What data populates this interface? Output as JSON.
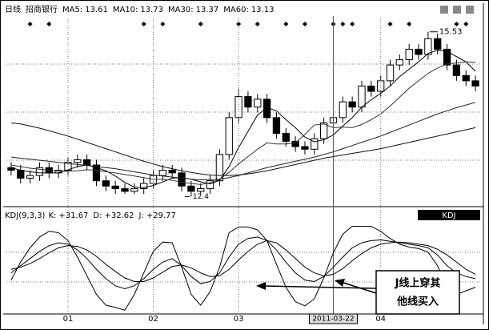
{
  "chart_data": [
    {
      "type": "candlestick",
      "period": "日线",
      "name": "招商银行",
      "ylim": [
        12.3,
        15.8
      ],
      "grid": true,
      "up_color": "#ffffff",
      "down_color": "#000000",
      "open": [
        12.95,
        12.9,
        12.75,
        12.8,
        12.95,
        12.85,
        12.9,
        13.05,
        13.1,
        13.0,
        12.7,
        12.6,
        12.55,
        12.5,
        12.55,
        12.65,
        12.8,
        12.9,
        12.85,
        12.6,
        12.5,
        12.55,
        12.7,
        13.2,
        13.9,
        14.3,
        14.1,
        14.25,
        13.9,
        13.6,
        13.45,
        13.35,
        13.3,
        13.5,
        13.8,
        13.9,
        14.2,
        14.1,
        14.5,
        14.4,
        14.6,
        14.9,
        15.0,
        15.2,
        15.1,
        15.4,
        15.2,
        14.9,
        14.7,
        14.6
      ],
      "high": [
        13.05,
        13.0,
        12.9,
        13.05,
        13.05,
        13.0,
        13.15,
        13.2,
        13.2,
        13.1,
        12.8,
        12.7,
        12.65,
        12.65,
        12.75,
        12.9,
        13.0,
        13.0,
        12.95,
        12.7,
        12.65,
        12.8,
        13.3,
        14.0,
        14.45,
        14.4,
        14.35,
        14.35,
        14.0,
        13.7,
        13.55,
        13.45,
        13.6,
        13.9,
        14.0,
        14.3,
        14.3,
        14.6,
        14.6,
        14.7,
        15.0,
        15.1,
        15.3,
        15.3,
        15.53,
        15.5,
        15.3,
        15.0,
        14.8,
        14.7
      ],
      "low": [
        12.8,
        12.65,
        12.65,
        12.7,
        12.75,
        12.75,
        12.8,
        12.95,
        12.9,
        12.6,
        12.5,
        12.45,
        12.45,
        12.45,
        12.45,
        12.55,
        12.7,
        12.75,
        12.5,
        12.4,
        12.45,
        12.45,
        12.6,
        13.1,
        13.8,
        14.0,
        14.0,
        13.8,
        13.5,
        13.35,
        13.25,
        13.2,
        13.2,
        13.4,
        13.7,
        13.8,
        14.0,
        14.0,
        14.3,
        14.3,
        14.5,
        14.8,
        14.9,
        15.0,
        15.0,
        15.1,
        14.8,
        14.6,
        14.5,
        14.4
      ],
      "close": [
        12.9,
        12.75,
        12.8,
        12.95,
        12.85,
        12.9,
        13.05,
        13.1,
        13.0,
        12.7,
        12.6,
        12.55,
        12.5,
        12.55,
        12.65,
        12.8,
        12.9,
        12.85,
        12.6,
        12.5,
        12.55,
        12.7,
        13.2,
        13.9,
        14.3,
        14.1,
        14.25,
        13.9,
        13.6,
        13.45,
        13.35,
        13.3,
        13.5,
        13.8,
        13.9,
        14.2,
        14.1,
        14.5,
        14.4,
        14.6,
        14.9,
        15.0,
        15.2,
        15.1,
        15.4,
        15.2,
        14.9,
        14.7,
        14.6,
        14.5
      ],
      "series": [
        {
          "name": "MA5:",
          "legend_value": 13.61,
          "color": "#000000",
          "values": [
            12.95,
            12.9,
            12.87,
            12.85,
            12.85,
            12.85,
            12.91,
            12.97,
            13.0,
            12.95,
            12.89,
            12.79,
            12.67,
            12.58,
            12.57,
            12.61,
            12.68,
            12.75,
            12.76,
            12.73,
            12.68,
            12.64,
            12.71,
            12.97,
            13.33,
            13.64,
            13.95,
            14.09,
            14.03,
            13.86,
            13.71,
            13.53,
            13.44,
            13.48,
            13.57,
            13.74,
            13.9,
            14.1,
            14.24,
            14.36,
            14.5,
            14.68,
            14.82,
            14.96,
            15.12,
            15.18,
            15.16,
            15.06,
            14.96,
            14.78
          ]
        },
        {
          "name": "MA10:",
          "legend_value": 13.73,
          "color": "#333333",
          "values": [
            13.0,
            12.97,
            12.94,
            12.92,
            12.9,
            12.88,
            12.88,
            12.89,
            12.91,
            12.9,
            12.87,
            12.85,
            12.82,
            12.79,
            12.76,
            12.73,
            12.73,
            12.71,
            12.67,
            12.65,
            12.63,
            12.66,
            12.73,
            12.86,
            13.02,
            13.16,
            13.3,
            13.42,
            13.4,
            13.4,
            13.42,
            13.58,
            13.76,
            13.78,
            13.71,
            13.72,
            13.71,
            13.77,
            13.86,
            13.97,
            14.12,
            14.29,
            14.46,
            14.6,
            14.74,
            14.84,
            14.92,
            14.94,
            14.96,
            14.95
          ]
        },
        {
          "name": "MA30:",
          "legend_value": 13.37,
          "color": "#222222",
          "values": [
            13.15,
            13.13,
            13.11,
            13.09,
            13.07,
            13.05,
            13.03,
            13.01,
            12.99,
            12.97,
            12.95,
            12.93,
            12.9,
            12.87,
            12.84,
            12.81,
            12.79,
            12.77,
            12.75,
            12.73,
            12.72,
            12.72,
            12.73,
            12.76,
            12.8,
            12.85,
            12.9,
            12.95,
            12.99,
            13.03,
            13.07,
            13.11,
            13.15,
            13.2,
            13.25,
            13.31,
            13.37,
            13.43,
            13.49,
            13.55,
            13.62,
            13.69,
            13.76,
            13.83,
            13.9,
            13.97,
            14.03,
            14.09,
            14.14,
            14.19
          ]
        },
        {
          "name": "MA60:",
          "legend_value": 13.13,
          "color": "#111111",
          "values": [
            13.8,
            13.78,
            13.74,
            13.7,
            13.65,
            13.6,
            13.55,
            13.49,
            13.43,
            13.37,
            13.31,
            13.25,
            13.19,
            13.13,
            13.07,
            13.02,
            12.97,
            12.93,
            12.89,
            12.86,
            12.83,
            12.81,
            12.8,
            12.8,
            12.81,
            12.83,
            12.86,
            12.89,
            12.93,
            12.97,
            13.01,
            13.05,
            13.09,
            13.13,
            13.16,
            13.19,
            13.22,
            13.25,
            13.28,
            13.31,
            13.35,
            13.39,
            13.43,
            13.47,
            13.51,
            13.55,
            13.59,
            13.63,
            13.67,
            13.71
          ]
        }
      ],
      "high_label": {
        "index": 44,
        "value": 15.53
      },
      "low_label": {
        "index": 19,
        "value": 12.4
      }
    },
    {
      "type": "line",
      "title": "KDJ(9,3,3)",
      "tag": "KDJ",
      "ylim": [
        -15,
        110
      ],
      "xticks": [
        {
          "value": 6,
          "label": "01"
        },
        {
          "value": 15,
          "label": "02"
        },
        {
          "value": 24,
          "label": "03"
        },
        {
          "value": 39,
          "label": "04"
        }
      ],
      "cursor": {
        "index": 34,
        "label": "2011-03-22"
      },
      "series": [
        {
          "name": "K:",
          "legend_value": 31.67,
          "legend_label": "+31.67",
          "color": "#000000",
          "values": [
            40,
            50,
            60,
            70,
            78,
            82,
            80,
            72,
            60,
            45,
            32,
            22,
            18,
            22,
            32,
            45,
            55,
            60,
            50,
            35,
            25,
            28,
            40,
            62,
            80,
            88,
            90,
            85,
            72,
            55,
            40,
            30,
            28,
            35,
            48,
            62,
            75,
            82,
            85,
            86,
            84,
            82,
            80,
            78,
            75,
            65,
            50,
            40,
            35,
            32
          ]
        },
        {
          "name": "D:",
          "legend_value": 32.62,
          "legend_label": "+32.62",
          "color": "#000000",
          "values": [
            45,
            48,
            53,
            60,
            68,
            75,
            78,
            77,
            72,
            63,
            52,
            42,
            33,
            28,
            28,
            33,
            41,
            49,
            51,
            47,
            40,
            35,
            36,
            45,
            58,
            70,
            80,
            85,
            82,
            72,
            60,
            48,
            40,
            36,
            38,
            46,
            57,
            67,
            75,
            80,
            82,
            83,
            82,
            80,
            78,
            73,
            65,
            55,
            45,
            38
          ]
        },
        {
          "name": "J:",
          "legend_value": 29.77,
          "legend_label": "+29.77",
          "color": "#000000",
          "values": [
            30,
            55,
            75,
            90,
            98,
            96,
            85,
            62,
            36,
            10,
            -5,
            -8,
            -12,
            10,
            40,
            70,
            83,
            82,
            48,
            10,
            -5,
            14,
            48,
            96,
            104,
            104,
            100,
            85,
            52,
            20,
            0,
            -6,
            4,
            33,
            68,
            94,
            105,
            105,
            105,
            98,
            88,
            80,
            76,
            74,
            69,
            50,
            20,
            10,
            15,
            20
          ]
        }
      ],
      "annotation": {
        "lines": [
          "J线上穿其",
          "他线买入"
        ]
      }
    }
  ]
}
